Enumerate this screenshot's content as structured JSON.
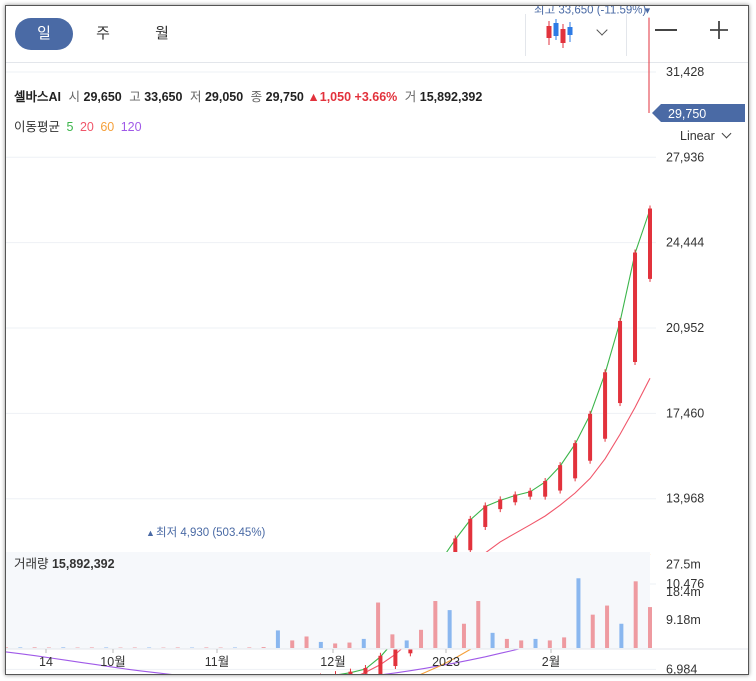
{
  "tabs": [
    {
      "label": "일",
      "active": true
    },
    {
      "label": "주",
      "active": false
    },
    {
      "label": "월",
      "active": false
    }
  ],
  "icons": {
    "chart_type": "candlestick-icon",
    "dropdown": "chevron-down-icon",
    "zoom_out": "minus-icon",
    "zoom_in": "plus-icon"
  },
  "summary": {
    "name": "셀바스AI",
    "open_label": "시",
    "open": "29,650",
    "high_label": "고",
    "high": "33,650",
    "low_label": "저",
    "low": "29,050",
    "close_label": "종",
    "close": "29,750",
    "change": "1,050",
    "change_pct": "+3.66%",
    "volume_label": "거",
    "volume": "15,892,392"
  },
  "ma": {
    "label": "이동평균",
    "periods": [
      {
        "value": "5",
        "color": "#3bb54a"
      },
      {
        "value": "20",
        "color": "#f0566a"
      },
      {
        "value": "60",
        "color": "#f5a03a"
      },
      {
        "value": "120",
        "color": "#a05ae8"
      }
    ]
  },
  "scale_mode": "Linear",
  "colors": {
    "up": "#e2323c",
    "down": "#2d7be5",
    "accent": "#4a6aa5",
    "grid": "#eef1f5"
  },
  "chart_data": [
    {
      "type": "line",
      "title": "",
      "y_ticks": [
        "31,428",
        "27,936",
        "24,444",
        "20,952",
        "17,460",
        "13,968",
        "10,476",
        "6,984"
      ],
      "x_ticks": [
        "14",
        "10월",
        "11월",
        "12월",
        "2023",
        "2월"
      ],
      "ylim": [
        4000,
        34500
      ],
      "current_price": {
        "label": "29,750",
        "value": 29750
      },
      "max_annotation": {
        "text": "최고 33,650 (-11.59%)",
        "value": 33650
      },
      "min_annotation": {
        "text": "최저 4,930 (503.45%)",
        "value": 4930
      },
      "series": [
        {
          "name": "5",
          "color": "#3bb54a",
          "values": [
            6550,
            6450,
            6350,
            6250,
            6100,
            5950,
            5850,
            5750,
            5700,
            5650,
            5700,
            5750,
            5800,
            5800,
            5700,
            5600,
            5600,
            5700,
            5900,
            6250,
            6500,
            6650,
            6750,
            6850,
            7000,
            7500,
            8200,
            9200,
            10300,
            11400,
            12300,
            13100,
            13650,
            13900,
            14100,
            14250,
            14650,
            15300,
            16200,
            17400,
            19100,
            21200,
            24000,
            25800
          ]
        },
        {
          "name": "20",
          "color": "#f0566a",
          "values": [
            6300,
            6250,
            6200,
            6150,
            6100,
            6050,
            5950,
            5850,
            5800,
            5750,
            5720,
            5720,
            5740,
            5760,
            5760,
            5740,
            5720,
            5710,
            5740,
            5820,
            5950,
            6150,
            6380,
            6600,
            6860,
            7180,
            7600,
            8150,
            8850,
            9620,
            10420,
            11150,
            11750,
            12200,
            12550,
            12900,
            13260,
            13700,
            14200,
            14800,
            15600,
            16600,
            17700,
            18900
          ]
        },
        {
          "name": "60",
          "color": "#f5a03a",
          "values": [
            6520,
            6480,
            6440,
            6390,
            6350,
            6300,
            6250,
            6200,
            6150,
            6100,
            6050,
            6000,
            5960,
            5920,
            5890,
            5870,
            5860,
            5860,
            5880,
            5900,
            5930,
            5970,
            6020,
            6080,
            6150,
            6250,
            6400,
            6600,
            6860,
            7130,
            7450,
            7800,
            8150,
            8450,
            8750,
            9020,
            9250,
            9500,
            9800,
            10100,
            10450,
            10850,
            11250,
            11700
          ]
        },
        {
          "name": "120",
          "color": "#a05ae8",
          "values": [
            7700,
            7620,
            7540,
            7450,
            7360,
            7270,
            7180,
            7090,
            7000,
            6920,
            6850,
            6780,
            6710,
            6650,
            6600,
            6560,
            6530,
            6510,
            6500,
            6500,
            6510,
            6540,
            6580,
            6630,
            6690,
            6760,
            6840,
            6930,
            7030,
            7140,
            7250,
            7370,
            7500,
            7640,
            7780,
            7920,
            8060,
            8210,
            8360,
            8520,
            8690,
            8860,
            9040,
            9220
          ]
        }
      ]
    },
    {
      "type": "bar",
      "title": "거래량",
      "value_label": "15,892,392",
      "y_ticks": [
        "27.5m",
        "18.4m",
        "9.18m"
      ],
      "ylim": [
        0,
        32000000
      ],
      "values": [
        200000,
        180000,
        220000,
        160000,
        200000,
        150000,
        180000,
        170000,
        140000,
        160000,
        150000,
        130000,
        170000,
        140000,
        180000,
        150000,
        160000,
        180000,
        300000,
        5800000,
        2500000,
        3800000,
        2000000,
        1500000,
        1800000,
        3000000,
        15000000,
        4500000,
        2500000,
        6000000,
        15500000,
        12500000,
        8000000,
        15500000,
        5000000,
        3000000,
        2500000,
        3000000,
        2500000,
        3500000,
        23000000,
        11000000,
        14000000,
        8000000,
        22000000,
        13500000
      ]
    }
  ]
}
